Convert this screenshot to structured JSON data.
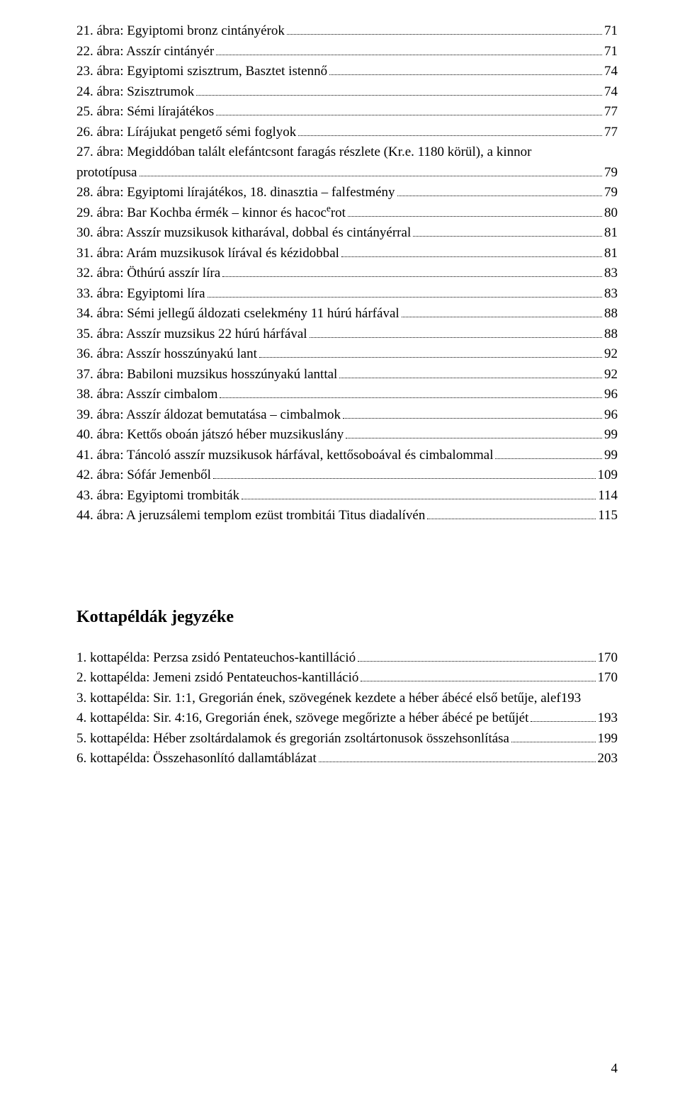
{
  "figures": [
    {
      "num": "21",
      "text": "ábra: Egyiptomi bronz cintányérok",
      "page": "71"
    },
    {
      "num": "22",
      "text": "ábra: Asszír cintányér",
      "page": "71"
    },
    {
      "num": "23",
      "text": "ábra: Egyiptomi szisztrum, Basztet istennő",
      "page": "74"
    },
    {
      "num": "24",
      "text": "ábra: Szisztrumok",
      "page": "74"
    },
    {
      "num": "25",
      "text": "ábra: Sémi lírajátékos",
      "page": "77"
    },
    {
      "num": "26",
      "text": "ábra: Lírájukat pengető sémi foglyok",
      "page": "77"
    },
    {
      "num": "27",
      "text": "ábra: Megiddóban talált elefántcsont faragás részlete (Kr.e. 1180 körül), a kinnor prototípusa",
      "page": "79",
      "multiline": true
    },
    {
      "num": "28",
      "text": "ábra: Egyiptomi lírajátékos, 18. dinasztia – falfestmény",
      "page": "79"
    },
    {
      "num": "29",
      "text": "ábra: Bar Kochba érmék – kinnor és hacocᵉrot",
      "page": "80"
    },
    {
      "num": "30",
      "text": "ábra: Asszír muzsikusok kitharával, dobbal és cintányérral",
      "page": "81"
    },
    {
      "num": "31",
      "text": "ábra: Arám muzsikusok lírával és kézidobbal",
      "page": "81"
    },
    {
      "num": "32",
      "text": "ábra: Öthúrú asszír líra",
      "page": "83"
    },
    {
      "num": "33",
      "text": "ábra: Egyiptomi líra",
      "page": "83"
    },
    {
      "num": "34",
      "text": "ábra: Sémi jellegű áldozati cselekmény 11 húrú hárfával",
      "page": "88"
    },
    {
      "num": "35",
      "text": "ábra: Asszír muzsikus 22 húrú hárfával",
      "page": "88"
    },
    {
      "num": "36",
      "text": "ábra: Asszír hosszúnyakú lant",
      "page": "92"
    },
    {
      "num": "37",
      "text": "ábra: Babiloni muzsikus hosszúnyakú lanttal",
      "page": "92"
    },
    {
      "num": "38",
      "text": "ábra: Asszír cimbalom",
      "page": "96"
    },
    {
      "num": "39",
      "text": "ábra: Asszír áldozat bemutatása – cimbalmok",
      "page": "96"
    },
    {
      "num": "40",
      "text": "ábra: Kettős oboán játszó héber muzsikuslány",
      "page": "99"
    },
    {
      "num": "41",
      "text": "ábra: Táncoló asszír muzsikusok hárfával, kettősoboával és cimbalommal",
      "page": "99"
    },
    {
      "num": "42",
      "text": "ábra: Sófár Jemenből",
      "page": "109"
    },
    {
      "num": "43",
      "text": "ábra: Egyiptomi trombiták",
      "page": "114"
    },
    {
      "num": "44",
      "text": "ábra: A jeruzsálemi templom ezüst trombitái Titus diadalívén",
      "page": "115"
    }
  ],
  "section_heading": "Kottapéldák jegyzéke",
  "examples": [
    {
      "num": "1",
      "text": "kottapélda: Perzsa zsidó Pentateuchos-kantilláció",
      "page": "170"
    },
    {
      "num": "2",
      "text": "kottapélda: Jemeni zsidó Pentateuchos-kantilláció",
      "page": "170"
    },
    {
      "num": "3",
      "text": "kottapélda: Sir. 1:1, Gregorián ének, szövegének kezdete a héber ábécé első betűje, alef",
      "page": "193",
      "nodots": true
    },
    {
      "num": "4",
      "text": "kottapélda: Sir. 4:16, Gregorián ének, szövege megőrizte a héber ábécé pe betűjét",
      "page": "193"
    },
    {
      "num": "5",
      "text": "kottapélda: Héber zsoltárdalamok és gregorián zsoltártonusok összehsonlítása",
      "page": "199"
    },
    {
      "num": "6",
      "text": "kottapélda: Összehasonlító dallamtáblázat",
      "page": "203"
    }
  ],
  "page_number": "4"
}
